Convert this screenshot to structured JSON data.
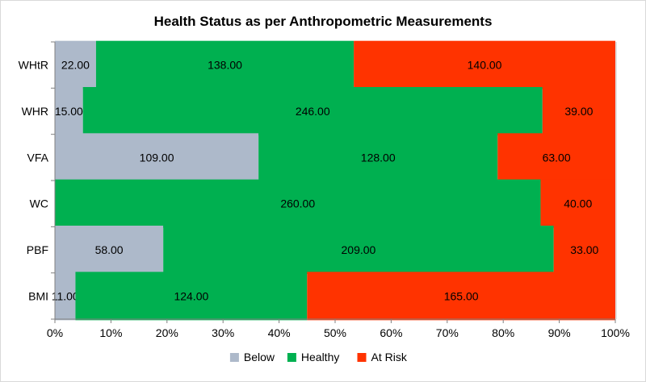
{
  "chart_data": {
    "type": "bar",
    "orientation": "horizontal",
    "stacked": "percent",
    "title": "Health Status as per Anthropometric Measurements",
    "categories": [
      "WHtR",
      "WHR",
      "VFA",
      "WC",
      "PBF",
      "BMI"
    ],
    "series": [
      {
        "name": "Below",
        "color": "#adb9ca",
        "values": [
          22,
          15,
          109,
          0,
          58,
          11
        ],
        "labels": [
          "22.00",
          "15.00",
          "109.00",
          "",
          "58.00",
          "11.00"
        ]
      },
      {
        "name": "Healthy",
        "color": "#00b050",
        "values": [
          138,
          246,
          128,
          260,
          209,
          124
        ],
        "labels": [
          "138.00",
          "246.00",
          "128.00",
          "260.00",
          "209.00",
          "124.00"
        ]
      },
      {
        "name": "At Risk",
        "color": "#ff3300",
        "values": [
          140,
          39,
          63,
          40,
          33,
          165
        ],
        "labels": [
          "140.00",
          "39.00",
          "63.00",
          "40.00",
          "33.00",
          "165.00"
        ]
      }
    ],
    "x_ticks": [
      "0%",
      "10%",
      "20%",
      "30%",
      "40%",
      "50%",
      "60%",
      "70%",
      "80%",
      "90%",
      "100%"
    ],
    "xlim": [
      0,
      100
    ],
    "grid": "vertical",
    "legend_position": "bottom"
  }
}
